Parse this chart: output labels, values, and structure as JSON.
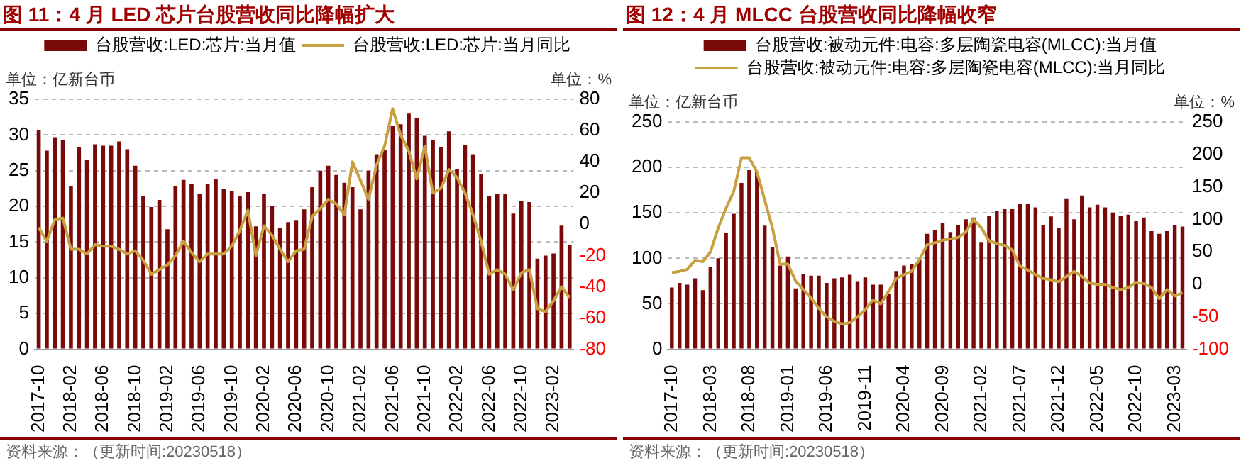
{
  "chart_data": [
    {
      "type": "bar",
      "title": "图 11：4 月 LED 芯片台股营收同比降幅扩大",
      "ylabel": "单位：亿新台币",
      "y2label": "单位：%",
      "categories": [
        "2017-10",
        null,
        null,
        null,
        "2018-02",
        null,
        null,
        null,
        "2018-06",
        null,
        null,
        null,
        "2018-10",
        null,
        null,
        null,
        "2019-02",
        null,
        null,
        null,
        "2019-06",
        null,
        null,
        null,
        "2019-10",
        null,
        null,
        null,
        "2020-02",
        null,
        null,
        null,
        "2020-06",
        null,
        null,
        null,
        "2020-10",
        null,
        null,
        null,
        "2021-02",
        null,
        null,
        null,
        "2021-06",
        null,
        null,
        null,
        "2021-10",
        null,
        null,
        null,
        "2022-02",
        null,
        null,
        null,
        "2022-06",
        null,
        null,
        null,
        "2022-10",
        null,
        null,
        null,
        "2023-02",
        null,
        null
      ],
      "series": [
        {
          "name": "台股营收:LED:芯片:当月值",
          "color": "#7a0a0a",
          "values": [
            30.7,
            27.8,
            29.7,
            29.3,
            22.9,
            28.3,
            26.5,
            28.7,
            28.5,
            28.5,
            29.1,
            28.0,
            25.7,
            21.5,
            19.9,
            20.9,
            16.8,
            22.9,
            23.7,
            23.1,
            21.7,
            23.1,
            23.8,
            22.4,
            22.2,
            21.4,
            22.0,
            17.2,
            21.7,
            20.1,
            17.0,
            17.8,
            18.1,
            19.6,
            22.7,
            25.0,
            25.7,
            24.4,
            23.3,
            22.7,
            19.6,
            25.0,
            27.3,
            27.9,
            31.3,
            31.5,
            33.0,
            32.4,
            29.9,
            29.3,
            28.3,
            30.5,
            25.2,
            28.6,
            27.3,
            24.5,
            21.5,
            21.7,
            21.7,
            19.0,
            20.7,
            20.6,
            12.7,
            13.1,
            13.4,
            17.3,
            14.6
          ]
        },
        {
          "name": "台股营收:LED:芯片:当月同比",
          "type": "line",
          "axis": "y2",
          "color": "#c8a040",
          "values": [
            -2,
            -11,
            3,
            4,
            -16,
            -16,
            -19,
            -13,
            -14,
            -14,
            -16,
            -19,
            -17,
            -23,
            -32,
            -29,
            -26,
            -20,
            -11,
            -18,
            -24,
            -19,
            -19,
            -19,
            -14,
            -4,
            9,
            -20,
            -1,
            -7,
            -16,
            -24,
            -17,
            -16,
            5,
            10,
            16,
            13,
            6,
            40,
            28,
            16,
            38,
            50,
            74,
            57,
            47,
            29,
            50,
            20,
            23,
            35,
            30,
            20,
            6,
            -11,
            -32,
            -29,
            -32,
            -42,
            -31,
            -29,
            -54,
            -56,
            -49,
            -40,
            -47
          ]
        }
      ],
      "ylim": [
        0,
        35
      ],
      "yticks": [
        0,
        5,
        10,
        15,
        20,
        25,
        30,
        35
      ],
      "y2lim": [
        -80,
        80
      ],
      "y2ticks": [
        -80,
        -60,
        -40,
        -20,
        0,
        20,
        40,
        60,
        80
      ],
      "grid": "y",
      "legend": "top",
      "annotations": [
        "资料来源：（更新时间:20230518）"
      ]
    },
    {
      "type": "bar",
      "title": "图 12：4 月 MLCC 台股营收同比降幅收窄",
      "ylabel": "单位：亿新台币",
      "y2label": "单位：%",
      "categories": [
        "2017-10",
        null,
        null,
        null,
        null,
        "2018-03",
        null,
        null,
        null,
        null,
        "2018-08",
        null,
        null,
        null,
        null,
        "2019-01",
        null,
        null,
        null,
        null,
        "2019-06",
        null,
        null,
        null,
        null,
        "2019-11",
        null,
        null,
        null,
        null,
        "2020-04",
        null,
        null,
        null,
        null,
        "2020-09",
        null,
        null,
        null,
        null,
        "2021-02",
        null,
        null,
        null,
        null,
        "2021-07",
        null,
        null,
        null,
        null,
        "2021-12",
        null,
        null,
        null,
        null,
        "2022-05",
        null,
        null,
        null,
        null,
        "2022-10",
        null,
        null,
        null,
        null,
        "2023-03",
        null
      ],
      "series": [
        {
          "name": "台股营收:被动元件:电容:多层陶瓷电容(MLCC):当月值",
          "color": "#7a0a0a",
          "values": [
            68,
            73,
            71,
            78,
            65,
            91,
            100,
            128,
            149,
            183,
            197,
            195,
            136,
            112,
            92,
            102,
            67,
            83,
            81,
            81,
            73,
            78,
            79,
            82,
            75,
            79,
            71,
            71,
            61,
            86,
            92,
            94,
            99,
            127,
            131,
            139,
            129,
            137,
            143,
            145,
            118,
            147,
            152,
            154,
            154,
            160,
            160,
            156,
            137,
            146,
            133,
            166,
            143,
            169,
            156,
            159,
            156,
            150,
            147,
            148,
            141,
            145,
            130,
            127,
            130,
            137,
            135
          ]
        },
        {
          "name": "台股营收:被动元件:电容:多层陶瓷电容(MLCC):当月同比",
          "type": "line",
          "axis": "y2",
          "color": "#c8a040",
          "values": [
            18,
            20,
            23,
            37,
            35,
            50,
            87,
            117,
            143,
            195,
            195,
            173,
            130,
            87,
            31,
            31,
            5,
            -8,
            -21,
            -37,
            -50,
            -57,
            -61,
            -59,
            -50,
            -39,
            -24,
            -30,
            -11,
            9,
            15,
            20,
            38,
            61,
            64,
            68,
            70,
            72,
            81,
            100,
            87,
            67,
            63,
            60,
            53,
            28,
            22,
            15,
            9,
            7,
            4,
            12,
            20,
            12,
            2,
            0,
            0,
            -5,
            -8,
            -5,
            3,
            1,
            -5,
            -22,
            -8,
            -18,
            -13
          ]
        }
      ],
      "ylim": [
        0,
        250
      ],
      "yticks": [
        0,
        50,
        100,
        150,
        200,
        250
      ],
      "y2lim": [
        -100,
        250
      ],
      "y2ticks": [
        -100,
        -50,
        0,
        50,
        100,
        150,
        200,
        250
      ],
      "grid": "y",
      "legend": "top",
      "annotations": [
        "资料来源：（更新时间:20230518）"
      ]
    }
  ]
}
